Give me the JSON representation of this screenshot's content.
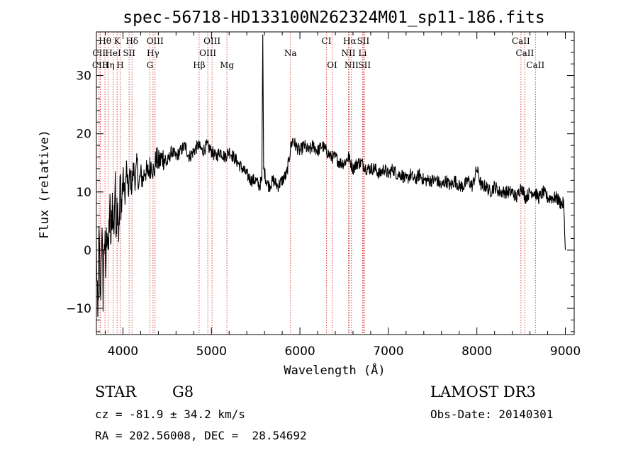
{
  "chart_data": {
    "type": "line",
    "title": "spec-56718-HD133100N262324M01_sp11-186.fits",
    "xlabel": "Wavelength (Å)",
    "ylabel": "Flux (relative)",
    "xlim": [
      3700,
      9100
    ],
    "ylim": [
      -14.5,
      37.5
    ],
    "x_ticks": [
      4000,
      5000,
      6000,
      7000,
      8000,
      9000
    ],
    "y_ticks": [
      -10,
      0,
      10,
      20,
      30
    ],
    "grid": false,
    "series": [
      {
        "name": "spectrum",
        "x": [
          3700,
          3715,
          3730,
          3745,
          3760,
          3775,
          3790,
          3805,
          3820,
          3835,
          3850,
          3865,
          3880,
          3895,
          3910,
          3925,
          3940,
          3955,
          3970,
          3985,
          4000,
          4020,
          4040,
          4060,
          4080,
          4100,
          4120,
          4140,
          4160,
          4180,
          4200,
          4225,
          4250,
          4275,
          4300,
          4325,
          4350,
          4375,
          4400,
          4450,
          4500,
          4550,
          4600,
          4650,
          4700,
          4750,
          4800,
          4850,
          4900,
          4950,
          5000,
          5050,
          5100,
          5150,
          5200,
          5250,
          5300,
          5350,
          5400,
          5450,
          5500,
          5540,
          5570,
          5580,
          5590,
          5620,
          5650,
          5700,
          5750,
          5800,
          5850,
          5880,
          5900,
          5920,
          5950,
          6000,
          6050,
          6100,
          6150,
          6200,
          6250,
          6300,
          6350,
          6400,
          6450,
          6500,
          6550,
          6600,
          6650,
          6700,
          6750,
          6800,
          6850,
          6900,
          6950,
          7000,
          7050,
          7100,
          7150,
          7200,
          7250,
          7300,
          7350,
          7400,
          7450,
          7500,
          7550,
          7600,
          7650,
          7700,
          7750,
          7800,
          7850,
          7900,
          7950,
          8000,
          8050,
          8100,
          8150,
          8200,
          8250,
          8300,
          8350,
          8400,
          8450,
          8500,
          8550,
          8600,
          8650,
          8700,
          8750,
          8800,
          8850,
          8900,
          8950,
          8980,
          9000
        ],
        "y": [
          0,
          -13,
          2,
          -9,
          4,
          -7,
          3,
          -4,
          6,
          -2,
          8,
          1,
          9,
          3,
          11,
          5,
          10,
          2,
          12,
          7,
          13,
          9,
          14,
          10,
          13,
          11,
          14,
          12,
          15,
          11,
          13,
          12,
          14,
          13,
          14,
          15,
          13,
          16,
          15,
          16,
          15,
          17,
          16,
          17,
          18,
          16,
          17,
          18,
          17,
          18,
          17,
          16,
          17,
          16,
          17,
          16,
          15,
          14,
          13,
          12,
          12,
          11,
          12,
          37,
          14,
          12,
          11,
          12,
          11,
          12,
          13,
          16,
          18,
          19,
          18,
          17,
          18,
          17,
          18,
          17,
          18,
          17,
          16,
          16,
          15,
          15,
          16,
          14,
          15,
          15,
          14,
          14,
          14,
          13,
          14,
          13,
          14,
          13,
          13,
          12,
          13,
          12,
          13,
          12,
          12,
          12,
          12,
          11,
          12,
          11,
          12,
          11,
          11,
          12,
          11,
          14,
          11,
          11,
          10,
          11,
          10,
          10,
          10,
          10,
          9,
          11,
          9,
          10,
          10,
          9,
          10,
          9,
          9,
          9,
          8,
          8,
          0
        ]
      }
    ],
    "lines": [
      {
        "label": "Hθ",
        "x": 3797,
        "row": 1,
        "color": "#d84040"
      },
      {
        "label": "K",
        "x": 3934,
        "row": 1,
        "color": "#d84040"
      },
      {
        "label": "Hδ",
        "x": 4102,
        "row": 1,
        "color": "#d84040"
      },
      {
        "label": "OIII",
        "x": 4363,
        "row": 1,
        "color": "#d84040"
      },
      {
        "label": "OIII",
        "x": 5007,
        "row": 1,
        "color": "#d84040"
      },
      {
        "label": "CI",
        "x": 6300,
        "row": 1,
        "color": "#d84040"
      },
      {
        "label": "Hα",
        "x": 6563,
        "row": 1,
        "color": "#d84040"
      },
      {
        "label": "SII",
        "x": 6716,
        "row": 1,
        "color": "#d84040"
      },
      {
        "label": "CaII",
        "x": 8498,
        "row": 1,
        "color": "#d84040"
      },
      {
        "label": "CII",
        "x": 3730,
        "row": 2,
        "color": "#d84040"
      },
      {
        "label": "HeI",
        "x": 3889,
        "row": 2,
        "color": "#d84040"
      },
      {
        "label": "SII",
        "x": 4070,
        "row": 2,
        "color": "#d84040"
      },
      {
        "label": "Hγ",
        "x": 4340,
        "row": 2,
        "color": "#d84040"
      },
      {
        "label": "OIII",
        "x": 4959,
        "row": 2,
        "color": "#d84040"
      },
      {
        "label": "Na",
        "x": 5893,
        "row": 2,
        "color": "#d84040"
      },
      {
        "label": "NII",
        "x": 6548,
        "row": 2,
        "color": "#d84040"
      },
      {
        "label": "Li",
        "x": 6708,
        "row": 2,
        "color": "#d84040"
      },
      {
        "label": "CaII",
        "x": 8542,
        "row": 2,
        "color": "#d84040"
      },
      {
        "label": "CIII",
        "x": 3745,
        "row": 3,
        "color": "#d84040"
      },
      {
        "label": "Hη",
        "x": 3835,
        "row": 3,
        "color": "#d84040"
      },
      {
        "label": "H",
        "x": 3968,
        "row": 3,
        "color": "#d84040"
      },
      {
        "label": "G",
        "x": 4305,
        "row": 3,
        "color": "#d84040"
      },
      {
        "label": "Hβ",
        "x": 4861,
        "row": 3,
        "color": "#d84040"
      },
      {
        "label": "Mg",
        "x": 5175,
        "row": 3,
        "color": "#d84040"
      },
      {
        "label": "OI",
        "x": 6364,
        "row": 3,
        "color": "#d84040"
      },
      {
        "label": "NII",
        "x": 6583,
        "row": 3,
        "color": "#d84040"
      },
      {
        "label": "SII",
        "x": 6731,
        "row": 3,
        "color": "#d84040"
      },
      {
        "label": "CaII",
        "x": 8662,
        "row": 3,
        "color": "#d84040"
      }
    ],
    "annotations": {
      "object_class": "STAR",
      "subclass": "G8",
      "survey": "LAMOST DR3",
      "redshift": "cz = -81.9 ± 34.2 km/s",
      "obs_date": "Obs-Date: 20140301",
      "coordinates": "RA = 202.56008, DEC =  28.54692"
    }
  }
}
